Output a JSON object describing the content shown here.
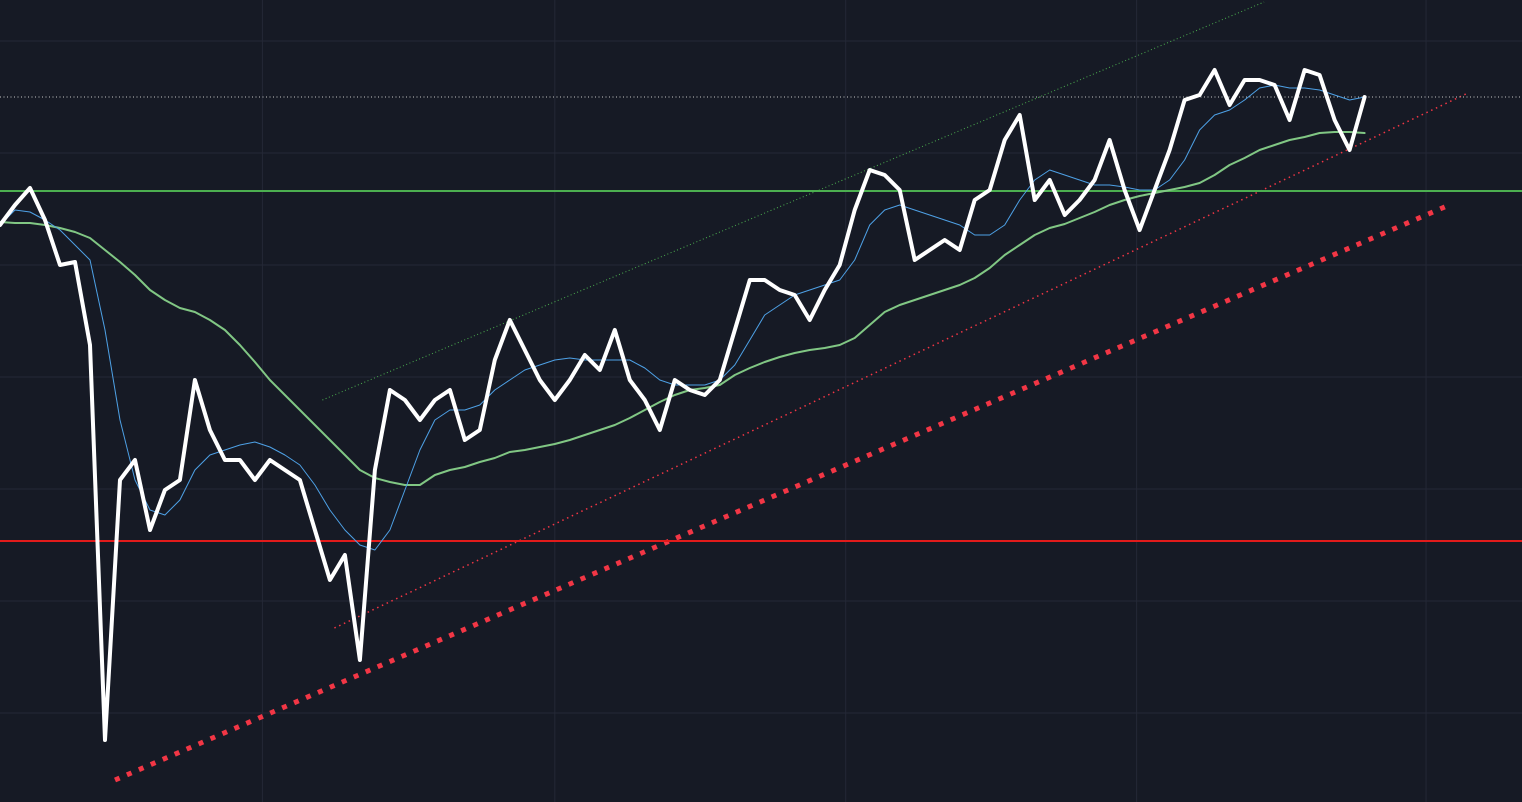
{
  "chart_data": {
    "type": "line",
    "xlim": [
      0,
      101.5
    ],
    "ylim": [
      0,
      80.2
    ],
    "xticks": [
      17.5,
      37,
      56.4,
      75.8,
      95.1
    ],
    "yticks": [
      8.9,
      20.1,
      31.3,
      42.5,
      53.7,
      64.9,
      76.1
    ],
    "grid": true,
    "background": "#161a25",
    "grid_color": "#242836",
    "x": [
      0,
      1,
      2,
      3,
      4,
      5,
      6,
      7,
      8,
      9,
      10,
      11,
      12,
      13,
      14,
      15,
      16,
      17,
      18,
      19,
      20,
      21,
      22,
      23,
      24,
      25,
      26,
      27,
      28,
      29,
      30,
      31,
      32,
      33,
      34,
      35,
      36,
      37,
      38,
      39,
      40,
      41,
      42,
      43,
      44,
      45,
      46,
      47,
      48,
      49,
      50,
      51,
      52,
      53,
      54,
      55,
      56,
      57,
      58,
      59,
      60,
      61,
      62,
      63,
      64,
      65,
      66,
      67,
      68,
      69,
      70,
      71,
      72,
      73,
      74,
      75,
      76,
      77,
      78,
      79,
      80,
      81,
      82,
      83,
      84,
      85,
      86,
      87,
      88,
      89,
      90,
      91
    ],
    "series": [
      {
        "color": "#81c784",
        "width": 2,
        "values": [
          58.0,
          57.9,
          57.9,
          57.7,
          57.4,
          57.0,
          56.4,
          55.2,
          54.0,
          52.7,
          51.2,
          50.2,
          49.4,
          49.0,
          48.2,
          47.2,
          45.7,
          44.0,
          42.2,
          40.7,
          39.2,
          37.7,
          36.2,
          34.7,
          33.2,
          32.4,
          32.0,
          31.7,
          31.7,
          32.7,
          33.2,
          33.5,
          34.0,
          34.4,
          35.0,
          35.2,
          35.5,
          35.8,
          36.2,
          36.7,
          37.2,
          37.7,
          38.4,
          39.2,
          40.0,
          40.7,
          41.2,
          41.4,
          41.7,
          42.7,
          43.4,
          44.0,
          44.5,
          44.9,
          45.2,
          45.4,
          45.7,
          46.4,
          47.7,
          49.0,
          49.7,
          50.2,
          50.7,
          51.2,
          51.7,
          52.4,
          53.4,
          54.7,
          55.7,
          56.7,
          57.4,
          57.8,
          58.4,
          59.0,
          59.7,
          60.2,
          60.6,
          60.9,
          61.2,
          61.5,
          61.9,
          62.7,
          63.7,
          64.4,
          65.2,
          65.7,
          66.2,
          66.5,
          66.9,
          67.0,
          67.0,
          66.9
        ]
      },
      {
        "color": "#4ea1e6",
        "width": 1,
        "values": [
          57.7,
          59.2,
          59.0,
          58.2,
          57.2,
          55.7,
          54.2,
          47.2,
          38.2,
          32.2,
          29.2,
          28.7,
          30.2,
          33.2,
          34.7,
          35.2,
          35.7,
          36.0,
          35.5,
          34.7,
          33.7,
          31.7,
          29.2,
          27.2,
          25.7,
          25.2,
          27.2,
          31.2,
          35.2,
          38.2,
          39.2,
          39.2,
          39.7,
          41.2,
          42.2,
          43.2,
          43.7,
          44.2,
          44.4,
          44.2,
          44.2,
          44.2,
          44.2,
          43.4,
          42.2,
          41.7,
          41.7,
          41.7,
          42.2,
          43.7,
          46.2,
          48.7,
          49.7,
          50.7,
          51.2,
          51.7,
          52.2,
          54.2,
          57.7,
          59.2,
          59.7,
          59.2,
          58.7,
          58.2,
          57.7,
          56.7,
          56.7,
          57.7,
          60.2,
          62.2,
          63.2,
          62.7,
          62.2,
          61.7,
          61.7,
          61.5,
          61.2,
          61.2,
          62.2,
          64.2,
          67.2,
          68.7,
          69.2,
          70.2,
          71.4,
          71.7,
          71.4,
          71.4,
          71.2,
          70.7,
          70.2,
          70.5
        ]
      },
      {
        "color": "#ffffff",
        "width": 4,
        "values": [
          57.7,
          59.7,
          61.4,
          58.2,
          53.7,
          54.0,
          45.7,
          6.2,
          32.2,
          34.2,
          27.2,
          31.2,
          32.2,
          42.2,
          37.2,
          34.2,
          34.2,
          32.2,
          34.2,
          33.2,
          32.2,
          27.2,
          22.2,
          24.7,
          14.2,
          33.2,
          41.2,
          40.2,
          38.2,
          40.2,
          41.2,
          36.2,
          37.2,
          44.2,
          48.2,
          45.2,
          42.2,
          40.2,
          42.2,
          44.7,
          43.2,
          47.2,
          42.2,
          40.2,
          37.2,
          42.2,
          41.2,
          40.7,
          42.2,
          47.2,
          52.2,
          52.2,
          51.2,
          50.7,
          48.2,
          51.2,
          53.7,
          59.2,
          63.2,
          62.7,
          61.2,
          54.2,
          55.2,
          56.2,
          55.2,
          60.2,
          61.2,
          66.2,
          68.7,
          60.2,
          62.2,
          58.7,
          60.2,
          62.2,
          66.2,
          61.2,
          57.2,
          61.2,
          65.2,
          70.2,
          70.7,
          73.2,
          69.7,
          72.2,
          72.2,
          71.7,
          68.2,
          73.2,
          72.7,
          68.2,
          65.2,
          70.5
        ]
      }
    ],
    "levels": [
      {
        "value": 70.5,
        "color": "#c8c8c8",
        "width": 1,
        "style": "dotted"
      },
      {
        "value": 61.1,
        "color": "#4caf50",
        "width": 2,
        "style": "solid"
      },
      {
        "value": 26.1,
        "color": "#e21b1b",
        "width": 2,
        "style": "solid"
      }
    ],
    "trendlines": [
      {
        "x": [
          21.5,
          84.3
        ],
        "y": [
          40.2,
          80.0
        ],
        "color": "#4caf50",
        "width": 1,
        "style": "dotted"
      },
      {
        "x": [
          22.3,
          97.9
        ],
        "y": [
          17.4,
          70.9
        ],
        "color": "#f23645",
        "width": 1.5,
        "style": "dotted"
      },
      {
        "x": [
          7.67,
          96.8
        ],
        "y": [
          2.2,
          59.8
        ],
        "color": "#f23645",
        "width": 5,
        "style": "dotted"
      }
    ]
  }
}
